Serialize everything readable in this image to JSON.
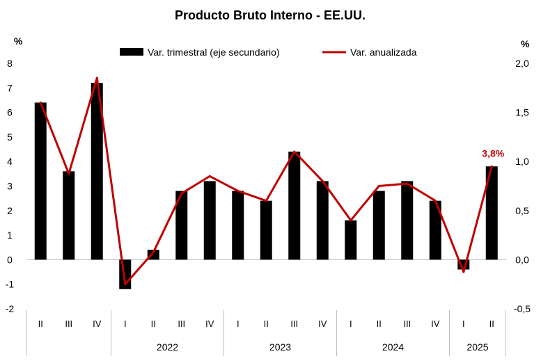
{
  "chart_data": {
    "type": "bar",
    "title": "Producto Bruto Interno - EE.UU.",
    "left_unit": "%",
    "right_unit": "%",
    "left_axis": {
      "min": -2,
      "max": 8,
      "ticks": [
        "-2",
        "-1",
        "0",
        "1",
        "2",
        "3",
        "4",
        "5",
        "6",
        "7",
        "8"
      ]
    },
    "right_axis": {
      "min": -0.5,
      "max": 2.0,
      "ticks": [
        "-0,5",
        "0,0",
        "0,5",
        "1,0",
        "1,5",
        "2,0"
      ]
    },
    "categories": [
      "II",
      "III",
      "IV",
      "I",
      "II",
      "III",
      "IV",
      "I",
      "II",
      "III",
      "IV",
      "I",
      "II",
      "III",
      "IV",
      "I",
      "II"
    ],
    "year_groups": [
      {
        "label": "",
        "count": 3
      },
      {
        "label": "2022",
        "count": 4
      },
      {
        "label": "2023",
        "count": 4
      },
      {
        "label": "2024",
        "count": 4
      },
      {
        "label": "2025",
        "count": 2
      }
    ],
    "series": [
      {
        "name": "Var. trimestral (eje secundario)",
        "kind": "bar",
        "axis": "right",
        "color": "#000000",
        "values": [
          1.6,
          0.9,
          1.8,
          -0.3,
          0.1,
          0.7,
          0.8,
          0.7,
          0.6,
          1.1,
          0.8,
          0.4,
          0.7,
          0.8,
          0.6,
          -0.1,
          0.95
        ]
      },
      {
        "name": "Var. anualizada",
        "kind": "line",
        "axis": "left",
        "color": "#c00000",
        "values": [
          6.4,
          3.5,
          7.4,
          -1.0,
          0.3,
          2.7,
          3.4,
          2.8,
          2.4,
          4.4,
          3.2,
          1.6,
          3.0,
          3.1,
          2.4,
          -0.5,
          3.8
        ]
      }
    ],
    "annotation": {
      "text": "3,8%",
      "color": "#c00000"
    },
    "legend": "top-center"
  }
}
